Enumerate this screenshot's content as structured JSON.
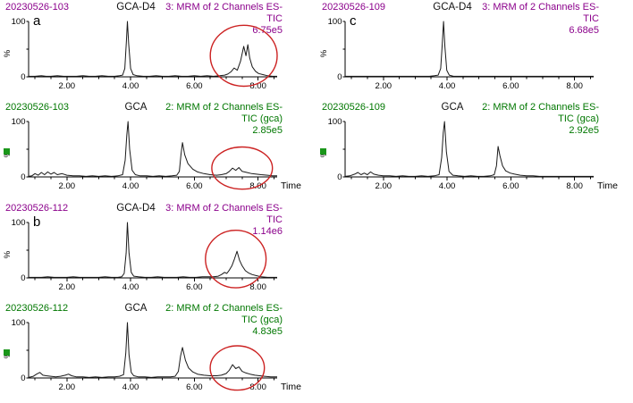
{
  "colors": {
    "purple": "#8B008B",
    "green": "#007700",
    "red_ellipse": "#CC2222",
    "trace": "#1a1a1a",
    "axis": "#000000",
    "green_square": "#1a961a"
  },
  "axis": {
    "x_min": 0.8,
    "x_max": 8.6,
    "y_min": 0,
    "y_max": 100,
    "x_ticks": [
      2.0,
      4.0,
      6.0,
      8.0
    ],
    "x_tick_labels": [
      "2.00",
      "4.00",
      "6.00",
      "8.00"
    ],
    "x_minor_step": 0.5,
    "y_tick_labels": [
      "0",
      "100"
    ],
    "y_label": "%",
    "time_label": "Time"
  },
  "chart_data": [
    {
      "type": "line",
      "panel_letter": "a",
      "sample_id": "20230526-103",
      "peak_label": "GCA-D4",
      "channel_text": [
        "3: MRM of 2 Channels ES-",
        "TIC",
        "6.75e5"
      ],
      "color_role": "purple",
      "show_time": false,
      "green_square": false,
      "red_ellipse": {
        "t_center": 7.55,
        "t_radius": 1.05,
        "pct_center": 38,
        "pct_radius": 55
      },
      "xlabel": "",
      "ylabel": "%",
      "xlim": [
        0.8,
        8.6
      ],
      "ylim": [
        0,
        100
      ],
      "x": [
        0.8,
        1.0,
        1.2,
        1.35,
        1.5,
        1.7,
        1.9,
        2.1,
        2.3,
        2.5,
        2.7,
        2.9,
        3.1,
        3.3,
        3.5,
        3.65,
        3.75,
        3.82,
        3.87,
        3.9,
        3.94,
        4.0,
        4.08,
        4.2,
        4.4,
        4.6,
        4.8,
        5.0,
        5.2,
        5.4,
        5.6,
        5.8,
        6.0,
        6.2,
        6.4,
        6.6,
        6.8,
        6.95,
        7.05,
        7.15,
        7.25,
        7.35,
        7.45,
        7.55,
        7.62,
        7.68,
        7.74,
        7.82,
        7.92,
        8.02,
        8.15,
        8.3,
        8.45,
        8.6
      ],
      "y": [
        1,
        1,
        2,
        1,
        1,
        2,
        1,
        1,
        1,
        2,
        1,
        1,
        2,
        1,
        1,
        2,
        3,
        15,
        65,
        100,
        60,
        15,
        4,
        2,
        1,
        1,
        2,
        1,
        1,
        2,
        1,
        1,
        2,
        1,
        2,
        1,
        2,
        3,
        5,
        9,
        16,
        12,
        28,
        55,
        38,
        58,
        34,
        18,
        10,
        6,
        4,
        2,
        1,
        1
      ]
    },
    {
      "type": "line",
      "panel_letter": "",
      "sample_id": "20230526-103",
      "peak_label": "GCA",
      "channel_text": [
        "2: MRM of 2 Channels ES-",
        "TIC (gca)",
        "2.85e5"
      ],
      "color_role": "green",
      "show_time": true,
      "green_square": true,
      "red_ellipse": {
        "t_center": 7.5,
        "t_radius": 0.95,
        "pct_center": 16,
        "pct_radius": 38
      },
      "xlabel": "Time",
      "ylabel": "%",
      "xlim": [
        0.8,
        8.6
      ],
      "ylim": [
        0,
        100
      ],
      "x": [
        0.8,
        0.9,
        1.0,
        1.1,
        1.2,
        1.3,
        1.4,
        1.5,
        1.6,
        1.7,
        1.85,
        2.0,
        2.2,
        2.4,
        2.6,
        2.8,
        3.0,
        3.2,
        3.4,
        3.6,
        3.75,
        3.83,
        3.88,
        3.92,
        3.97,
        4.05,
        4.15,
        4.3,
        4.5,
        4.7,
        4.9,
        5.1,
        5.3,
        5.45,
        5.53,
        5.58,
        5.63,
        5.7,
        5.8,
        5.95,
        6.1,
        6.3,
        6.5,
        6.7,
        6.85,
        7.0,
        7.1,
        7.2,
        7.3,
        7.4,
        7.5,
        7.65,
        7.8,
        7.95,
        8.1,
        8.3,
        8.45,
        8.6
      ],
      "y": [
        1,
        2,
        6,
        3,
        8,
        4,
        9,
        5,
        8,
        4,
        6,
        3,
        2,
        2,
        1,
        2,
        1,
        2,
        1,
        2,
        4,
        30,
        75,
        100,
        50,
        12,
        4,
        2,
        2,
        1,
        2,
        1,
        2,
        3,
        10,
        40,
        62,
        40,
        24,
        14,
        9,
        6,
        4,
        3,
        4,
        6,
        10,
        16,
        12,
        17,
        10,
        8,
        6,
        5,
        4,
        3,
        2,
        2
      ]
    },
    {
      "type": "line",
      "panel_letter": "b",
      "sample_id": "20230526-112",
      "peak_label": "GCA-D4",
      "channel_text": [
        "3: MRM of 2 Channels ES-",
        "TIC",
        "1.14e6"
      ],
      "color_role": "purple",
      "show_time": false,
      "green_square": false,
      "red_ellipse": {
        "t_center": 7.3,
        "t_radius": 0.95,
        "pct_center": 34,
        "pct_radius": 52
      },
      "xlabel": "",
      "ylabel": "%",
      "xlim": [
        0.8,
        8.6
      ],
      "ylim": [
        0,
        100
      ],
      "x": [
        0.8,
        1.0,
        1.2,
        1.4,
        1.6,
        1.8,
        2.0,
        2.2,
        2.4,
        2.6,
        2.8,
        3.0,
        3.2,
        3.4,
        3.6,
        3.72,
        3.8,
        3.86,
        3.9,
        3.95,
        4.02,
        4.1,
        4.25,
        4.45,
        4.65,
        4.85,
        5.05,
        5.25,
        5.45,
        5.65,
        5.85,
        6.05,
        6.25,
        6.45,
        6.6,
        6.75,
        6.85,
        6.95,
        7.02,
        7.1,
        7.18,
        7.26,
        7.34,
        7.42,
        7.5,
        7.6,
        7.7,
        7.82,
        7.95,
        8.1,
        8.3,
        8.45,
        8.6
      ],
      "y": [
        1,
        1,
        1,
        2,
        1,
        1,
        1,
        2,
        1,
        1,
        1,
        1,
        2,
        1,
        1,
        2,
        8,
        45,
        100,
        45,
        10,
        3,
        2,
        1,
        1,
        2,
        1,
        1,
        1,
        2,
        1,
        1,
        2,
        2,
        2,
        3,
        6,
        10,
        8,
        14,
        22,
        34,
        48,
        32,
        22,
        13,
        9,
        6,
        4,
        2,
        1,
        1,
        1
      ]
    },
    {
      "type": "line",
      "panel_letter": "",
      "sample_id": "20230526-112",
      "peak_label": "GCA",
      "channel_text": [
        "2: MRM of 2 Channels ES-",
        "TIC (gca)",
        "4.83e5"
      ],
      "color_role": "green",
      "show_time": true,
      "green_square": true,
      "red_ellipse": {
        "t_center": 7.35,
        "t_radius": 0.85,
        "pct_center": 18,
        "pct_radius": 40
      },
      "xlabel": "Time",
      "ylabel": "%",
      "xlim": [
        0.8,
        8.6
      ],
      "ylim": [
        0,
        100
      ],
      "x": [
        0.8,
        0.95,
        1.05,
        1.15,
        1.25,
        1.35,
        1.5,
        1.65,
        1.8,
        1.95,
        2.05,
        2.15,
        2.3,
        2.5,
        2.7,
        2.9,
        3.1,
        3.3,
        3.5,
        3.65,
        3.78,
        3.85,
        3.9,
        3.95,
        4.02,
        4.1,
        4.25,
        4.45,
        4.65,
        4.85,
        5.05,
        5.25,
        5.4,
        5.5,
        5.57,
        5.63,
        5.72,
        5.82,
        5.95,
        6.1,
        6.3,
        6.5,
        6.7,
        6.85,
        7.0,
        7.1,
        7.2,
        7.3,
        7.4,
        7.5,
        7.62,
        7.75,
        7.9,
        8.05,
        8.2,
        8.4,
        8.6
      ],
      "y": [
        1,
        3,
        7,
        10,
        5,
        4,
        3,
        2,
        3,
        5,
        7,
        4,
        2,
        2,
        1,
        2,
        1,
        2,
        2,
        3,
        6,
        45,
        100,
        42,
        10,
        4,
        2,
        2,
        1,
        2,
        2,
        2,
        3,
        12,
        40,
        55,
        32,
        18,
        11,
        7,
        5,
        4,
        4,
        5,
        8,
        14,
        24,
        17,
        20,
        12,
        9,
        7,
        5,
        4,
        3,
        2,
        2
      ]
    },
    {
      "type": "line",
      "panel_letter": "c",
      "sample_id": "20230526-109",
      "peak_label": "GCA-D4",
      "channel_text": [
        "3: MRM of 2 Channels ES-",
        "TIC",
        "6.68e5"
      ],
      "color_role": "purple",
      "show_time": false,
      "green_square": false,
      "red_ellipse": null,
      "xlabel": "",
      "ylabel": "%",
      "xlim": [
        0.8,
        8.6
      ],
      "ylim": [
        0,
        100
      ],
      "x": [
        0.8,
        1.1,
        1.4,
        1.7,
        2.0,
        2.3,
        2.6,
        2.9,
        3.2,
        3.45,
        3.6,
        3.72,
        3.8,
        3.85,
        3.89,
        3.93,
        3.99,
        4.07,
        4.2,
        4.4,
        4.65,
        4.9,
        5.15,
        5.4,
        5.65,
        5.9,
        6.15,
        6.4,
        6.65,
        6.9,
        7.15,
        7.4,
        7.65,
        7.9,
        8.15,
        8.4,
        8.6
      ],
      "y": [
        1,
        1,
        1,
        1,
        1,
        1,
        1,
        1,
        1,
        1,
        2,
        3,
        15,
        60,
        100,
        55,
        12,
        3,
        1,
        1,
        1,
        1,
        1,
        1,
        1,
        1,
        1,
        1,
        1,
        1,
        1,
        1,
        1,
        1,
        1,
        1,
        1
      ]
    },
    {
      "type": "line",
      "panel_letter": "",
      "sample_id": "20230526-109",
      "peak_label": "GCA",
      "channel_text": [
        "2: MRM of 2 Channels ES-",
        "TIC (gca)",
        "2.92e5"
      ],
      "color_role": "green",
      "show_time": true,
      "green_square": true,
      "red_ellipse": null,
      "xlabel": "Time",
      "ylabel": "%",
      "xlim": [
        0.8,
        8.6
      ],
      "ylim": [
        0,
        100
      ],
      "x": [
        0.8,
        0.95,
        1.1,
        1.2,
        1.3,
        1.4,
        1.5,
        1.6,
        1.7,
        1.85,
        2.0,
        2.2,
        2.4,
        2.6,
        2.8,
        3.0,
        3.2,
        3.4,
        3.6,
        3.75,
        3.83,
        3.88,
        3.92,
        3.98,
        4.06,
        4.18,
        4.35,
        4.55,
        4.75,
        4.95,
        5.15,
        5.35,
        5.48,
        5.55,
        5.6,
        5.66,
        5.74,
        5.84,
        5.98,
        6.12,
        6.3,
        6.5,
        6.7,
        6.9,
        7.1,
        7.35,
        7.6,
        7.85,
        8.1,
        8.35,
        8.6
      ],
      "y": [
        1,
        2,
        5,
        8,
        4,
        7,
        4,
        9,
        5,
        3,
        2,
        2,
        1,
        2,
        1,
        1,
        2,
        1,
        2,
        4,
        35,
        80,
        100,
        45,
        10,
        3,
        2,
        1,
        2,
        1,
        1,
        2,
        4,
        20,
        55,
        38,
        20,
        11,
        7,
        5,
        3,
        2,
        2,
        1,
        1,
        1,
        1,
        1,
        1,
        1,
        1
      ]
    }
  ]
}
